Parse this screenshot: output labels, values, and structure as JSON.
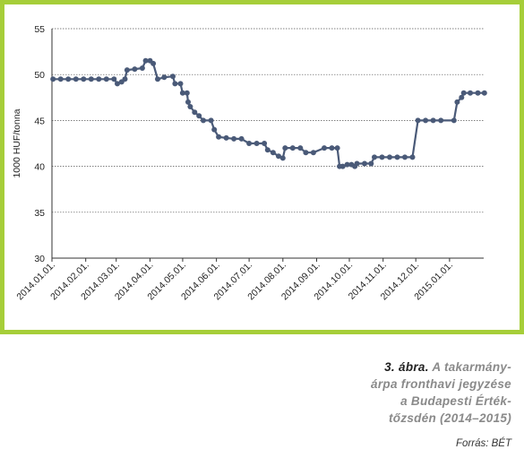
{
  "chart_data": {
    "type": "line",
    "ylabel": "1000 HUF/tonna",
    "ylim": [
      30,
      55
    ],
    "yticks": [
      30,
      35,
      40,
      45,
      50,
      55
    ],
    "x_tick_labels": [
      "2014.01.01.",
      "2014.02.01.",
      "2014.03.01.",
      "2014.04.01.",
      "2014.05.01.",
      "2014.06.01.",
      "2014.07.01.",
      "2014.08.01.",
      "2014.09.01.",
      "2014.10.01.",
      "2014.11.01.",
      "2014.12.01.",
      "2015.01.01."
    ],
    "grid": "horizontal dashed",
    "series": [
      {
        "color": "#4a5a78",
        "points": [
          [
            "2014.01.02.",
            49.5
          ],
          [
            "2014.01.09.",
            49.5
          ],
          [
            "2014.01.16.",
            49.5
          ],
          [
            "2014.01.23.",
            49.5
          ],
          [
            "2014.01.30.",
            49.5
          ],
          [
            "2014.02.06.",
            49.5
          ],
          [
            "2014.02.13.",
            49.5
          ],
          [
            "2014.02.20.",
            49.5
          ],
          [
            "2014.02.27.",
            49.5
          ],
          [
            "2014.03.02.",
            49.0
          ],
          [
            "2014.03.06.",
            49.2
          ],
          [
            "2014.03.09.",
            49.5
          ],
          [
            "2014.03.11.",
            50.5
          ],
          [
            "2014.03.18.",
            50.6
          ],
          [
            "2014.03.25.",
            50.7
          ],
          [
            "2014.03.28.",
            51.5
          ],
          [
            "2014.04.01.",
            51.5
          ],
          [
            "2014.04.04.",
            51.2
          ],
          [
            "2014.04.08.",
            49.5
          ],
          [
            "2014.04.14.",
            49.7
          ],
          [
            "2014.04.22.",
            49.8
          ],
          [
            "2014.04.24.",
            49.0
          ],
          [
            "2014.04.29.",
            49.0
          ],
          [
            "2014.05.01.",
            48.0
          ],
          [
            "2014.05.05.",
            48.0
          ],
          [
            "2014.05.06.",
            47.0
          ],
          [
            "2014.05.08.",
            46.5
          ],
          [
            "2014.05.12.",
            45.9
          ],
          [
            "2014.05.16.",
            45.5
          ],
          [
            "2014.05.20.",
            45.0
          ],
          [
            "2014.05.27.",
            45.0
          ],
          [
            "2014.05.30.",
            44.0
          ],
          [
            "2014.06.03.",
            43.2
          ],
          [
            "2014.06.10.",
            43.1
          ],
          [
            "2014.06.17.",
            43.0
          ],
          [
            "2014.06.24.",
            43.0
          ],
          [
            "2014.07.01.",
            42.5
          ],
          [
            "2014.07.08.",
            42.5
          ],
          [
            "2014.07.15.",
            42.5
          ],
          [
            "2014.07.18.",
            41.8
          ],
          [
            "2014.07.23.",
            41.5
          ],
          [
            "2014.07.28.",
            41.1
          ],
          [
            "2014.08.01.",
            40.9
          ],
          [
            "2014.08.03.",
            42.0
          ],
          [
            "2014.08.10.",
            42.0
          ],
          [
            "2014.08.17.",
            42.0
          ],
          [
            "2014.08.22.",
            41.5
          ],
          [
            "2014.08.29.",
            41.5
          ],
          [
            "2014.09.08.",
            42.0
          ],
          [
            "2014.09.15.",
            42.0
          ],
          [
            "2014.09.20.",
            42.0
          ],
          [
            "2014.09.22.",
            40.0
          ],
          [
            "2014.09.25.",
            40.0
          ],
          [
            "2014.09.29.",
            40.2
          ],
          [
            "2014.10.03.",
            40.2
          ],
          [
            "2014.10.06.",
            40.0
          ],
          [
            "2014.10.08.",
            40.3
          ],
          [
            "2014.10.15.",
            40.3
          ],
          [
            "2014.10.21.",
            40.3
          ],
          [
            "2014.10.24.",
            41.0
          ],
          [
            "2014.10.31.",
            41.0
          ],
          [
            "2014.11.07.",
            41.0
          ],
          [
            "2014.11.14.",
            41.0
          ],
          [
            "2014.11.21.",
            41.0
          ],
          [
            "2014.11.28.",
            41.0
          ],
          [
            "2014.12.03.",
            45.0
          ],
          [
            "2014.12.10.",
            45.0
          ],
          [
            "2014.12.17.",
            45.0
          ],
          [
            "2014.12.24.",
            45.0
          ],
          [
            "2015.01.05.",
            45.0
          ],
          [
            "2015.01.08.",
            47.0
          ],
          [
            "2015.01.12.",
            47.5
          ],
          [
            "2015.01.14.",
            48.0
          ],
          [
            "2015.01.20.",
            48.0
          ],
          [
            "2015.01.27.",
            48.0
          ],
          [
            "2015.02.02.",
            48.0
          ]
        ]
      }
    ]
  },
  "caption": {
    "number": "3. ábra.",
    "line1": "A takarmány-",
    "line2": "árpa fronthavi jegyzése",
    "line3": "a Budapesti Érték-",
    "line4": "tőzsdén (2014–2015)",
    "source": "Forrás: BÉT"
  }
}
